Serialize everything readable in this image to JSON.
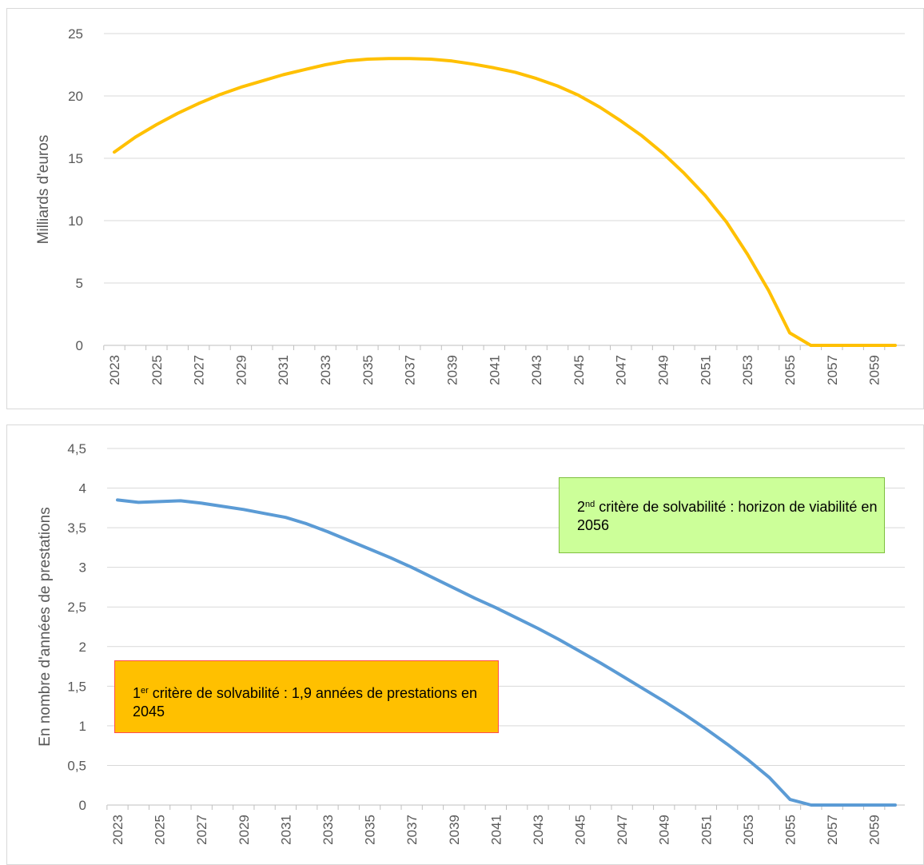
{
  "chart_data": [
    {
      "type": "line",
      "ylabel": "Milliards d'euros",
      "ylim": [
        0,
        25
      ],
      "yticks": [
        "0",
        "5",
        "10",
        "15",
        "20",
        "25"
      ],
      "xtick_labels": [
        "2023",
        "2025",
        "2027",
        "2029",
        "2031",
        "2033",
        "2035",
        "2037",
        "2039",
        "2041",
        "2043",
        "2045",
        "2047",
        "2049",
        "2051",
        "2053",
        "2055",
        "2057",
        "2059"
      ],
      "grid": true,
      "color": "#ffc000",
      "series": [
        {
          "x": [
            2023,
            2024,
            2025,
            2026,
            2027,
            2028,
            2029,
            2030,
            2031,
            2032,
            2033,
            2034,
            2035,
            2036,
            2037,
            2038,
            2039,
            2040,
            2041,
            2042,
            2043,
            2044,
            2045,
            2046,
            2047,
            2048,
            2049,
            2050,
            2051,
            2052,
            2053,
            2054,
            2055,
            2056,
            2057,
            2058,
            2059,
            2060
          ],
          "values": [
            15.5,
            16.7,
            17.7,
            18.6,
            19.4,
            20.1,
            20.7,
            21.2,
            21.7,
            22.1,
            22.5,
            22.8,
            22.95,
            23.0,
            23.0,
            22.95,
            22.8,
            22.55,
            22.25,
            21.9,
            21.4,
            20.8,
            20.05,
            19.1,
            18.0,
            16.8,
            15.4,
            13.8,
            12.0,
            9.9,
            7.3,
            4.4,
            1.0,
            0.0,
            0.0,
            0.0,
            0.0,
            0.0
          ]
        }
      ]
    },
    {
      "type": "line",
      "ylabel": "En nombre d'années de prestations",
      "ylim": [
        0,
        4.5
      ],
      "yticks": [
        "0",
        "0,5",
        "1",
        "1,5",
        "2",
        "2,5",
        "3",
        "3,5",
        "4",
        "4,5"
      ],
      "xtick_labels": [
        "2023",
        "2025",
        "2027",
        "2029",
        "2031",
        "2033",
        "2035",
        "2037",
        "2039",
        "2041",
        "2043",
        "2045",
        "2047",
        "2049",
        "2051",
        "2053",
        "2055",
        "2057",
        "2059"
      ],
      "grid": true,
      "color": "#5b9bd5",
      "series": [
        {
          "x": [
            2023,
            2024,
            2025,
            2026,
            2027,
            2028,
            2029,
            2030,
            2031,
            2032,
            2033,
            2034,
            2035,
            2036,
            2037,
            2038,
            2039,
            2040,
            2041,
            2042,
            2043,
            2044,
            2045,
            2046,
            2047,
            2048,
            2049,
            2050,
            2051,
            2052,
            2053,
            2054,
            2055,
            2056,
            2057,
            2058,
            2059,
            2060
          ],
          "values": [
            3.85,
            3.82,
            3.83,
            3.84,
            3.81,
            3.77,
            3.73,
            3.68,
            3.63,
            3.55,
            3.45,
            3.34,
            3.23,
            3.12,
            3.0,
            2.87,
            2.74,
            2.61,
            2.49,
            2.36,
            2.23,
            2.09,
            1.94,
            1.79,
            1.63,
            1.47,
            1.31,
            1.14,
            0.96,
            0.77,
            0.57,
            0.35,
            0.07,
            0.0,
            0.0,
            0.0,
            0.0,
            0.0
          ]
        }
      ],
      "annotations": [
        {
          "sup_base": "2",
          "sup": "nd",
          "text": " critère de solvabilité : horizon de viabilité en 2056",
          "bg": "#ccff99"
        },
        {
          "sup_base": "1",
          "sup": "er",
          "text": " critère de solvabilité : 1,9 années de prestations en 2045",
          "bg": "#ffc000"
        }
      ]
    }
  ]
}
